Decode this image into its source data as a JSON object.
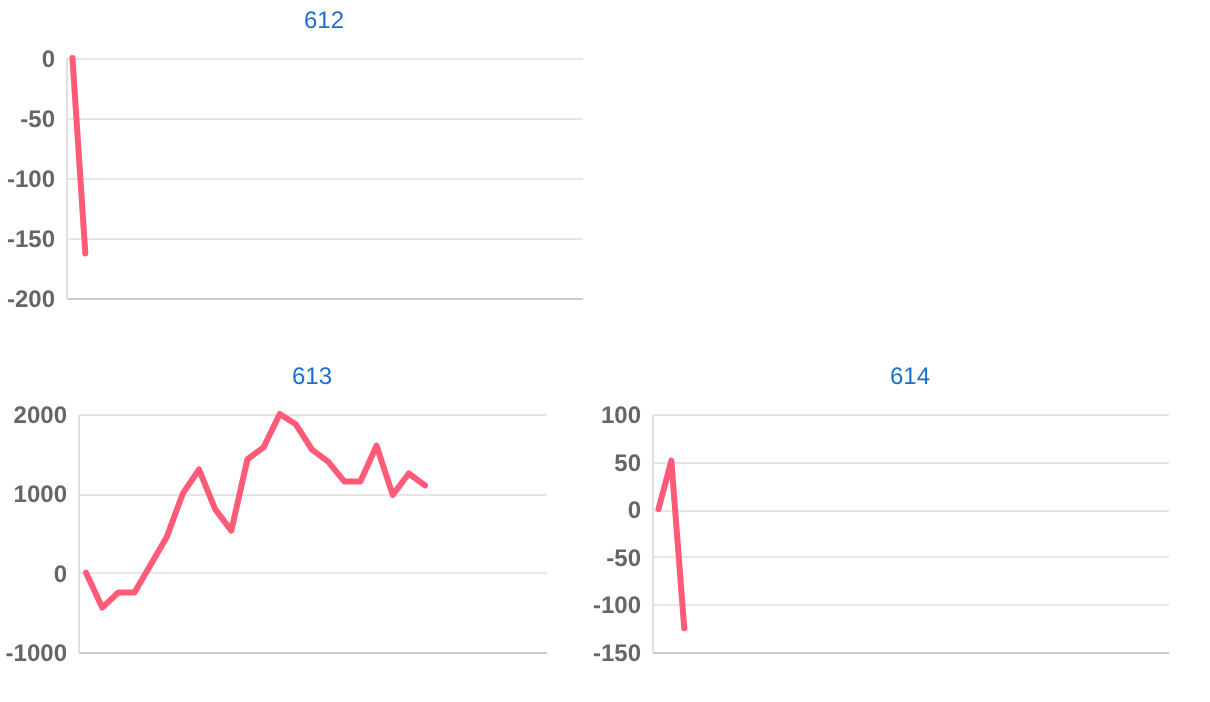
{
  "chart_data": [
    {
      "type": "line",
      "title": "612",
      "categories": [
        null,
        null,
        null,
        null,
        null,
        null,
        null,
        null,
        null,
        null,
        null,
        null,
        null,
        null,
        null,
        null,
        null,
        null,
        null,
        null,
        null,
        null,
        null,
        null,
        null,
        null,
        null,
        null,
        null,
        null,
        null,
        null,
        null,
        null,
        null,
        null,
        null,
        null,
        null,
        null
      ],
      "series": [
        {
          "color": "#ff5a78",
          "values": [
            0,
            -163,
            null,
            null,
            null,
            null,
            null,
            null,
            null,
            null,
            null,
            null,
            null,
            null,
            null,
            null,
            null,
            null,
            null,
            null,
            null,
            null,
            null,
            null,
            null,
            null,
            null,
            null,
            null,
            null,
            null,
            null,
            null,
            null,
            null,
            null,
            null,
            null,
            null,
            null
          ]
        }
      ],
      "ylim": [
        -200,
        0
      ],
      "yticks": [
        -200,
        -150,
        -100,
        -50,
        0
      ],
      "grid": "y",
      "tick_labels": "y",
      "marker": "none",
      "line_style": "solid"
    },
    {
      "type": "line",
      "title": "613",
      "categories": [
        null,
        null,
        null,
        null,
        null,
        null,
        null,
        null,
        null,
        null,
        null,
        null,
        null,
        null,
        null,
        null,
        null,
        null,
        null,
        null,
        null,
        null,
        null,
        null,
        null,
        null,
        null,
        null,
        null
      ],
      "series": [
        {
          "color": "#ff5a78",
          "values": [
            0,
            -440,
            -250,
            -250,
            100,
            450,
            1000,
            1300,
            800,
            530,
            1430,
            1580,
            2000,
            1870,
            1550,
            1400,
            1150,
            1150,
            1600,
            980,
            1250,
            1100,
            null,
            null,
            null,
            null,
            null,
            null,
            null
          ]
        }
      ],
      "ylim": [
        -1000,
        2000
      ],
      "yticks": [
        -1000,
        0,
        1000,
        2000
      ],
      "grid": "y",
      "tick_labels": "y",
      "marker": "none",
      "line_style": "solid"
    },
    {
      "type": "line",
      "title": "614",
      "categories": [
        null,
        null,
        null,
        null,
        null,
        null,
        null,
        null,
        null,
        null,
        null,
        null,
        null,
        null,
        null,
        null,
        null,
        null,
        null,
        null,
        null,
        null,
        null,
        null,
        null,
        null,
        null,
        null,
        null,
        null,
        null,
        null,
        null,
        null,
        null,
        null,
        null,
        null,
        null,
        null
      ],
      "series": [
        {
          "color": "#ff5a78",
          "values": [
            0,
            51,
            -125,
            null,
            null,
            null,
            null,
            null,
            null,
            null,
            null,
            null,
            null,
            null,
            null,
            null,
            null,
            null,
            null,
            null,
            null,
            null,
            null,
            null,
            null,
            null,
            null,
            null,
            null,
            null,
            null,
            null,
            null,
            null,
            null,
            null,
            null,
            null,
            null,
            null
          ]
        }
      ],
      "ylim": [
        -150,
        100
      ],
      "yticks": [
        -150,
        -100,
        -50,
        0,
        50,
        100
      ],
      "grid": "y",
      "tick_labels": "y",
      "marker": "none",
      "line_style": "solid"
    }
  ]
}
